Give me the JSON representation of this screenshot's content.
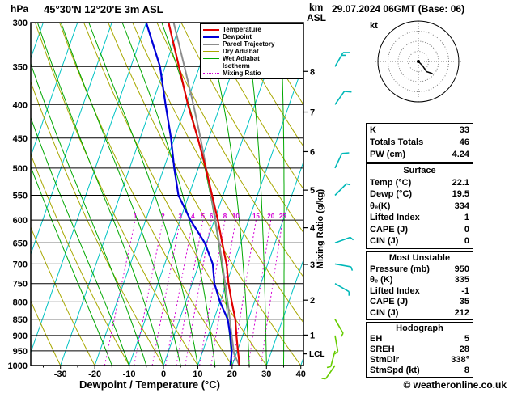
{
  "header": {
    "station": "45°30'N 12°20'E 3m ASL",
    "datetime": "29.07.2024 06GMT (Base: 06)"
  },
  "axes": {
    "pressure_label": "hPa",
    "pressure_ticks": [
      300,
      350,
      400,
      450,
      500,
      550,
      600,
      650,
      700,
      750,
      800,
      850,
      900,
      950,
      1000
    ],
    "temp_ticks": [
      -30,
      -20,
      -10,
      0,
      10,
      20,
      30,
      40
    ],
    "x_label": "Dewpoint / Temperature (°C)",
    "km_label": "km",
    "asl_label": "ASL",
    "km_ticks": [
      1,
      2,
      3,
      4,
      5,
      6,
      7,
      8
    ],
    "mixing_label": "Mixing Ratio (g/kg)",
    "lcl_label": "LCL"
  },
  "legend": {
    "items": [
      {
        "label": "Temperature",
        "color": "#e00000",
        "style": "solid",
        "width": 2
      },
      {
        "label": "Dewpoint",
        "color": "#0000d8",
        "style": "solid",
        "width": 2
      },
      {
        "label": "Parcel Trajectory",
        "color": "#8c8c8c",
        "style": "solid",
        "width": 2
      },
      {
        "label": "Dry Adiabat",
        "color": "#a8a800",
        "style": "solid",
        "width": 1
      },
      {
        "label": "Wet Adiabat",
        "color": "#00a800",
        "style": "solid",
        "width": 1
      },
      {
        "label": "Isotherm",
        "color": "#00c3c3",
        "style": "solid",
        "width": 1
      },
      {
        "label": "Mixing Ratio",
        "color": "#d400d4",
        "style": "dotted",
        "width": 1
      }
    ]
  },
  "chart_data": {
    "type": "skewt-logp",
    "skew": 0.35,
    "pressure_range": [
      300,
      1000
    ],
    "lcl_pressure": 960,
    "colors": {
      "isotherm": "#00c3c3",
      "dry_adiabat": "#a8a800",
      "wet_adiabat": "#00a800",
      "mixing_ratio": "#d400d4",
      "temperature": "#e00000",
      "dewpoint": "#0000d8",
      "parcel": "#8c8c8c",
      "grid": "#000000"
    },
    "mixing_ratio_lines": [
      1,
      2,
      3,
      4,
      5,
      6,
      8,
      10,
      15,
      20,
      25
    ],
    "dry_adiabats_c": [
      -40,
      -30,
      -20,
      -10,
      0,
      10,
      20,
      30,
      40,
      50,
      60,
      70,
      80,
      90,
      100,
      110,
      120,
      130
    ],
    "wet_adiabats_start_c": [
      -15,
      -10,
      -5,
      0,
      5,
      10,
      15,
      20,
      25,
      30,
      35
    ],
    "temperature_profile": [
      [
        1000,
        22.1
      ],
      [
        975,
        21.2
      ],
      [
        950,
        20.2
      ],
      [
        925,
        19.2
      ],
      [
        900,
        18.2
      ],
      [
        850,
        16.2
      ],
      [
        800,
        13.4
      ],
      [
        750,
        10.6
      ],
      [
        700,
        8.0
      ],
      [
        650,
        4.6
      ],
      [
        600,
        1.0
      ],
      [
        550,
        -3.2
      ],
      [
        500,
        -7.8
      ],
      [
        450,
        -13.2
      ],
      [
        400,
        -19.5
      ],
      [
        350,
        -26.0
      ],
      [
        300,
        -33.5
      ]
    ],
    "dewpoint_profile": [
      [
        1000,
        19.5
      ],
      [
        975,
        19.0
      ],
      [
        950,
        18.4
      ],
      [
        925,
        17.4
      ],
      [
        900,
        16.4
      ],
      [
        850,
        14.0
      ],
      [
        800,
        10.0
      ],
      [
        750,
        6.5
      ],
      [
        700,
        4.0
      ],
      [
        650,
        -0.5
      ],
      [
        600,
        -7.0
      ],
      [
        550,
        -13.0
      ],
      [
        500,
        -17.0
      ],
      [
        450,
        -21.0
      ],
      [
        400,
        -26.0
      ],
      [
        350,
        -31.5
      ],
      [
        300,
        -40.0
      ]
    ],
    "parcel_profile": [
      [
        1000,
        22.1
      ],
      [
        960,
        19.4
      ],
      [
        900,
        16.8
      ],
      [
        850,
        14.6
      ],
      [
        800,
        12.2
      ],
      [
        750,
        9.6
      ],
      [
        700,
        6.8
      ],
      [
        650,
        3.7
      ],
      [
        600,
        0.3
      ],
      [
        550,
        -3.5
      ],
      [
        500,
        -7.7
      ],
      [
        450,
        -12.4
      ],
      [
        400,
        -17.9
      ],
      [
        350,
        -24.4
      ],
      [
        300,
        -32.0
      ]
    ],
    "wind_barbs": [
      {
        "p": 350,
        "dir": 30,
        "spd": 15,
        "color": "#00b8b8"
      },
      {
        "p": 400,
        "dir": 35,
        "spd": 10,
        "color": "#00b8b8"
      },
      {
        "p": 500,
        "dir": 25,
        "spd": 10,
        "color": "#00b8b8"
      },
      {
        "p": 550,
        "dir": 45,
        "spd": 5,
        "color": "#00b8b8"
      },
      {
        "p": 650,
        "dir": 70,
        "spd": 5,
        "color": "#00b8b8"
      },
      {
        "p": 700,
        "dir": 100,
        "spd": 5,
        "color": "#00b8b8"
      },
      {
        "p": 750,
        "dir": 120,
        "spd": 5,
        "color": "#00b8b8"
      },
      {
        "p": 850,
        "dir": 150,
        "spd": 5,
        "color": "#66cc00"
      },
      {
        "p": 900,
        "dir": 170,
        "spd": 5,
        "color": "#66cc00"
      },
      {
        "p": 950,
        "dir": 195,
        "spd": 3,
        "color": "#66cc00"
      },
      {
        "p": 1000,
        "dir": 215,
        "spd": 3,
        "color": "#66cc00"
      }
    ]
  },
  "hodograph": {
    "unit_label": "kt",
    "rings_kt": [
      5,
      10,
      15,
      20
    ],
    "trace_uv_kt": [
      [
        0,
        0
      ],
      [
        2,
        -2
      ],
      [
        4,
        -5
      ],
      [
        7,
        -6
      ]
    ]
  },
  "panel": {
    "indices": {
      "rows": [
        {
          "label": "K",
          "value": "33"
        },
        {
          "label": "Totals Totals",
          "value": "46"
        },
        {
          "label": "PW (cm)",
          "value": "4.24"
        }
      ]
    },
    "surface": {
      "title": "Surface",
      "rows": [
        {
          "label": "Temp (°C)",
          "value": "22.1"
        },
        {
          "label": "Dewp (°C)",
          "value": "19.5"
        },
        {
          "label": "θₑ(K)",
          "value": "334"
        },
        {
          "label": "Lifted Index",
          "value": "1"
        },
        {
          "label": "CAPE (J)",
          "value": "0"
        },
        {
          "label": "CIN (J)",
          "value": "0"
        }
      ]
    },
    "most_unstable": {
      "title": "Most Unstable",
      "rows": [
        {
          "label": "Pressure (mb)",
          "value": "950"
        },
        {
          "label": "θₑ (K)",
          "value": "335"
        },
        {
          "label": "Lifted Index",
          "value": "-1"
        },
        {
          "label": "CAPE (J)",
          "value": "35"
        },
        {
          "label": "CIN (J)",
          "value": "212"
        }
      ]
    },
    "hodograph_stats": {
      "title": "Hodograph",
      "rows": [
        {
          "label": "EH",
          "value": "5"
        },
        {
          "label": "SREH",
          "value": "28"
        },
        {
          "label": "StmDir",
          "value": "338°"
        },
        {
          "label": "StmSpd (kt)",
          "value": "8"
        }
      ]
    }
  },
  "footer": {
    "copyright": "© weatheronline.co.uk"
  }
}
